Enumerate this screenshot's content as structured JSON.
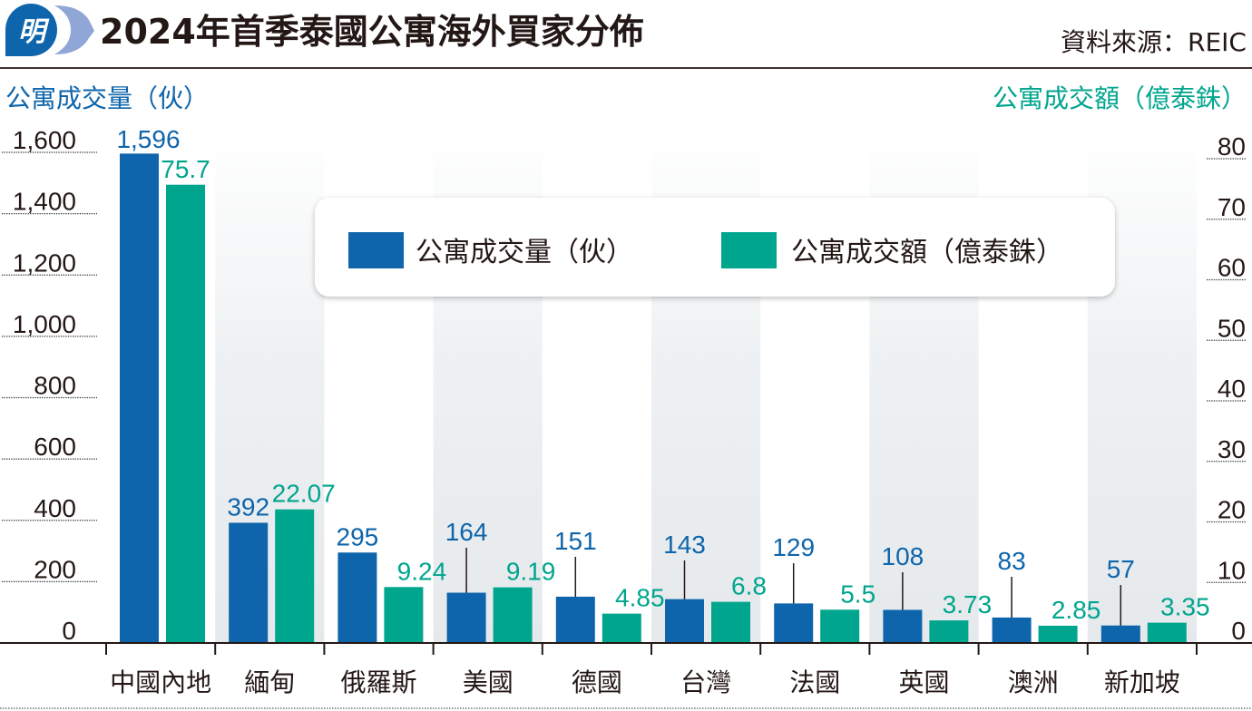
{
  "header": {
    "logo_text": "明",
    "title": "2024年首季泰國公寓海外買家分佈",
    "source": "資料來源：REIC"
  },
  "colors": {
    "units": "#0e65ab",
    "value": "#00a58e",
    "band": "#e7ebee",
    "text": "#231815",
    "logo_dark": "#0e65ab",
    "logo_light": "#8fa6d6"
  },
  "chart_data": {
    "type": "bar",
    "title": "2024年首季泰國公寓海外買家分佈",
    "categories": [
      "中國內地",
      "緬甸",
      "俄羅斯",
      "美國",
      "德國",
      "台灣",
      "法國",
      "英國",
      "澳洲",
      "新加坡"
    ],
    "series": [
      {
        "name": "公寓成交量（伙）",
        "axis": "left",
        "values": [
          1596,
          392,
          295,
          164,
          151,
          143,
          129,
          108,
          83,
          57
        ],
        "labels": [
          "1,596",
          "392",
          "295",
          "164",
          "151",
          "143",
          "129",
          "108",
          "83",
          "57"
        ]
      },
      {
        "name": "公寓成交額（億泰銖）",
        "axis": "right",
        "values": [
          75.7,
          22.07,
          9.24,
          9.19,
          4.85,
          6.8,
          5.5,
          3.73,
          2.85,
          3.35
        ],
        "labels": [
          "75.7",
          "22.07",
          "9.24",
          "9.19",
          "4.85",
          "6.8",
          "5.5",
          "3.73",
          "2.85",
          "3.35"
        ]
      }
    ],
    "ylabel_left": "公寓成交量（伙）",
    "ylabel_right": "公寓成交額（億泰銖）",
    "ylim_left": [
      0,
      1600
    ],
    "ylim_right": [
      0,
      80
    ],
    "yticks_left": [
      "0",
      "200",
      "400",
      "600",
      "800",
      "1,000",
      "1,200",
      "1,400",
      "1,600"
    ],
    "yticks_right": [
      "0",
      "10",
      "20",
      "30",
      "40",
      "50",
      "60",
      "70",
      "80"
    ],
    "legend": {
      "placement": "top-center",
      "items": [
        "公寓成交量（伙）",
        "公寓成交額（億泰銖）"
      ]
    },
    "grid": false
  }
}
